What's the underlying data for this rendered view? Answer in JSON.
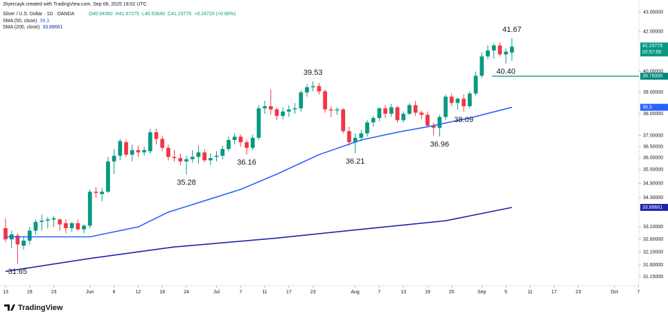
{
  "header": {
    "credit": "Jhyercayk created with TradingView.com, Sep 08, 2025 18:02 UTC",
    "symbol": "Silver / U.S. Dollar · 1D · OANDA",
    "ohlc": [
      "O40.94350",
      "H41.67275",
      "L40.53640",
      "C41.23775",
      "+0.24720 (+0.60%)"
    ]
  },
  "chart_data": {
    "type": "candlestick",
    "up_color": "#089981",
    "down_color": "#f23645",
    "open": [
      33.05,
      32.6,
      32.75,
      32.35,
      32.55,
      32.95,
      33.3,
      33.35,
      33.4,
      33.4,
      33.25,
      33.05,
      33.25,
      33.0,
      33.15,
      34.55,
      34.45,
      34.55,
      35.85,
      36.1,
      36.7,
      36.15,
      36.35,
      36.25,
      36.3,
      37.15,
      36.85,
      36.45,
      36.05,
      36.0,
      35.85,
      35.95,
      36.05,
      36.25,
      35.9,
      36.05,
      36.1,
      36.4,
      36.8,
      36.95,
      36.7,
      36.45,
      36.9,
      38.25,
      38.35,
      38.2,
      37.9,
      38.1,
      38.2,
      38.25,
      39.0,
      39.25,
      39.3,
      39.05,
      38.2,
      38.15,
      38.2,
      37.2,
      36.7,
      36.9,
      37.1,
      37.6,
      37.8,
      38.25,
      38.0,
      38.3,
      37.7,
      38.0,
      38.4,
      38.05,
      37.95,
      37.45,
      37.35,
      37.85,
      38.8,
      38.5,
      38.7,
      38.35,
      38.95,
      39.8,
      40.75,
      41.05,
      41.3,
      40.85,
      40.9435
    ],
    "high": [
      33.45,
      32.95,
      32.85,
      32.7,
      33.1,
      33.4,
      33.6,
      33.5,
      33.55,
      33.45,
      33.4,
      33.3,
      33.4,
      33.2,
      34.65,
      34.75,
      34.7,
      36.05,
      36.4,
      36.85,
      36.8,
      36.6,
      36.55,
      36.5,
      37.3,
      37.3,
      37.0,
      36.6,
      36.35,
      36.2,
      36.1,
      36.35,
      36.55,
      36.4,
      36.2,
      36.3,
      36.55,
      36.95,
      37.1,
      37.05,
      36.8,
      37.05,
      38.4,
      38.6,
      39.15,
      38.3,
      38.3,
      38.4,
      38.5,
      39.1,
      39.4,
      39.53,
      39.45,
      39.15,
      38.35,
      38.3,
      38.25,
      37.4,
      37.1,
      37.25,
      37.7,
      37.9,
      38.3,
      38.4,
      38.45,
      38.35,
      38.1,
      38.5,
      38.6,
      38.15,
      38.1,
      37.6,
      37.95,
      38.9,
      38.95,
      38.75,
      38.9,
      39.05,
      40.0,
      40.95,
      41.3,
      41.4,
      41.45,
      41.15,
      41.67275
    ],
    "low": [
      32.5,
      32.25,
      31.65,
      32.2,
      32.4,
      32.8,
      32.95,
      33.05,
      33.1,
      32.95,
      32.85,
      32.9,
      32.95,
      32.85,
      33.05,
      34.3,
      34.15,
      34.5,
      35.3,
      35.9,
      36.05,
      35.85,
      36.05,
      36.1,
      36.2,
      36.6,
      36.3,
      35.9,
      35.85,
      35.7,
      35.28,
      35.8,
      35.75,
      35.8,
      35.7,
      35.85,
      35.95,
      36.3,
      36.6,
      36.5,
      36.16,
      36.35,
      36.8,
      38.0,
      37.95,
      37.7,
      37.75,
      37.85,
      38.0,
      38.1,
      38.8,
      39.05,
      38.9,
      38.05,
      37.85,
      37.95,
      37.1,
      36.55,
      36.21,
      36.75,
      36.95,
      37.4,
      37.65,
      37.8,
      37.85,
      37.6,
      37.6,
      37.95,
      37.9,
      37.75,
      37.4,
      37.0,
      36.96,
      37.7,
      38.35,
      38.2,
      38.09,
      38.25,
      38.85,
      39.7,
      40.6,
      40.65,
      40.75,
      40.4,
      40.5364
    ],
    "close": [
      32.6,
      32.8,
      32.4,
      32.55,
      32.95,
      33.3,
      33.35,
      33.4,
      33.45,
      33.2,
      33.05,
      33.25,
      33.0,
      33.15,
      34.55,
      34.5,
      34.55,
      35.85,
      36.1,
      36.75,
      36.15,
      36.35,
      36.25,
      36.35,
      37.15,
      36.85,
      36.45,
      36.05,
      36.0,
      35.85,
      35.95,
      36.05,
      36.25,
      35.9,
      36.0,
      36.1,
      36.4,
      36.8,
      36.95,
      36.7,
      36.45,
      36.9,
      38.25,
      38.35,
      38.2,
      37.9,
      38.1,
      38.2,
      38.25,
      39.0,
      39.25,
      39.3,
      39.05,
      38.2,
      38.15,
      38.2,
      37.2,
      36.7,
      36.9,
      37.1,
      37.6,
      37.8,
      38.25,
      38.0,
      38.3,
      37.7,
      38.0,
      38.4,
      38.05,
      37.95,
      37.45,
      37.35,
      37.85,
      38.8,
      38.5,
      38.7,
      38.35,
      38.95,
      39.8,
      40.75,
      41.05,
      41.3,
      40.85,
      40.99,
      41.23775
    ],
    "series": [
      {
        "name": "SMA (50, close)",
        "color": "#2962ff",
        "x": [
          0,
          14,
          22,
          27,
          34,
          39,
          45,
          52,
          59,
          65,
          70,
          77,
          84
        ],
        "values": [
          32.7,
          32.7,
          33.1,
          33.7,
          34.25,
          34.65,
          35.3,
          36.15,
          36.8,
          37.15,
          37.4,
          37.8,
          38.3
        ]
      },
      {
        "name": "SMA (200, close)",
        "color": "#1e22aa",
        "x": [
          0,
          14,
          28,
          45,
          59,
          73,
          84
        ],
        "values": [
          31.35,
          31.85,
          32.3,
          32.65,
          33.0,
          33.35,
          33.89661
        ]
      }
    ],
    "hline": {
      "value": 39.78,
      "label": "39.78000",
      "color": "#00897b"
    },
    "countdown": "02:57:56",
    "annotations": [
      31.65,
      35.28,
      36.16,
      39.53,
      36.21,
      36.96,
      38.09,
      {
        "value": 40.4,
        "label": "40.40"
      },
      {
        "value": 41.67275,
        "label": "41.67"
      }
    ],
    "log_scale": true,
    "grid": false,
    "xlim": [
      -0.92,
      105.06
    ],
    "xticks": [
      {
        "value": 0,
        "label": "13"
      },
      {
        "value": 4,
        "label": "19"
      },
      {
        "value": 8,
        "label": "23"
      },
      {
        "value": 14,
        "label": "Jun"
      },
      {
        "value": 18,
        "label": "6"
      },
      {
        "value": 22,
        "label": "12"
      },
      {
        "value": 26,
        "label": "18"
      },
      {
        "value": 30,
        "label": "24"
      },
      {
        "value": 35,
        "label": "Jul"
      },
      {
        "value": 39,
        "label": "7"
      },
      {
        "value": 43,
        "label": "11"
      },
      {
        "value": 47,
        "label": "17"
      },
      {
        "value": 51,
        "label": "23"
      },
      {
        "value": 58,
        "label": "Aug"
      },
      {
        "value": 62,
        "label": "7"
      },
      {
        "value": 66,
        "label": "13"
      },
      {
        "value": 70,
        "label": "19"
      },
      {
        "value": 74,
        "label": "25"
      },
      {
        "value": 79,
        "label": "Sep"
      },
      {
        "value": 83,
        "label": "5"
      },
      {
        "value": 87,
        "label": "11"
      },
      {
        "value": 91,
        "label": "17"
      },
      {
        "value": 95,
        "label": "23"
      },
      {
        "value": 101,
        "label": "Oct"
      },
      {
        "value": 105,
        "label": "7"
      }
    ],
    "ylim": [
      30.86,
      43.47
    ],
    "yticks": [
      {
        "value": 43,
        "label": "43.00000"
      },
      {
        "value": 42,
        "label": "42.00000"
      },
      {
        "value": 40,
        "label": "40.00000"
      },
      {
        "value": 39,
        "label": "39.00000"
      },
      {
        "value": 38,
        "label": "38.00000"
      },
      {
        "value": 37,
        "label": "37.00000"
      },
      {
        "value": 36.5,
        "label": "36.50000"
      },
      {
        "value": 36,
        "label": "36.00000"
      },
      {
        "value": 35.5,
        "label": "35.50000"
      },
      {
        "value": 34.9,
        "label": "34.90000"
      },
      {
        "value": 34.3,
        "label": "34.30000"
      },
      {
        "value": 33.1,
        "label": "33.10000"
      },
      {
        "value": 32.6,
        "label": "32.60000"
      },
      {
        "value": 32.1,
        "label": "32.10000"
      },
      {
        "value": 31.6,
        "label": "31.60000"
      },
      {
        "value": 31.15,
        "label": "31.15000"
      }
    ]
  },
  "footer": {
    "logo": "TradingView"
  }
}
